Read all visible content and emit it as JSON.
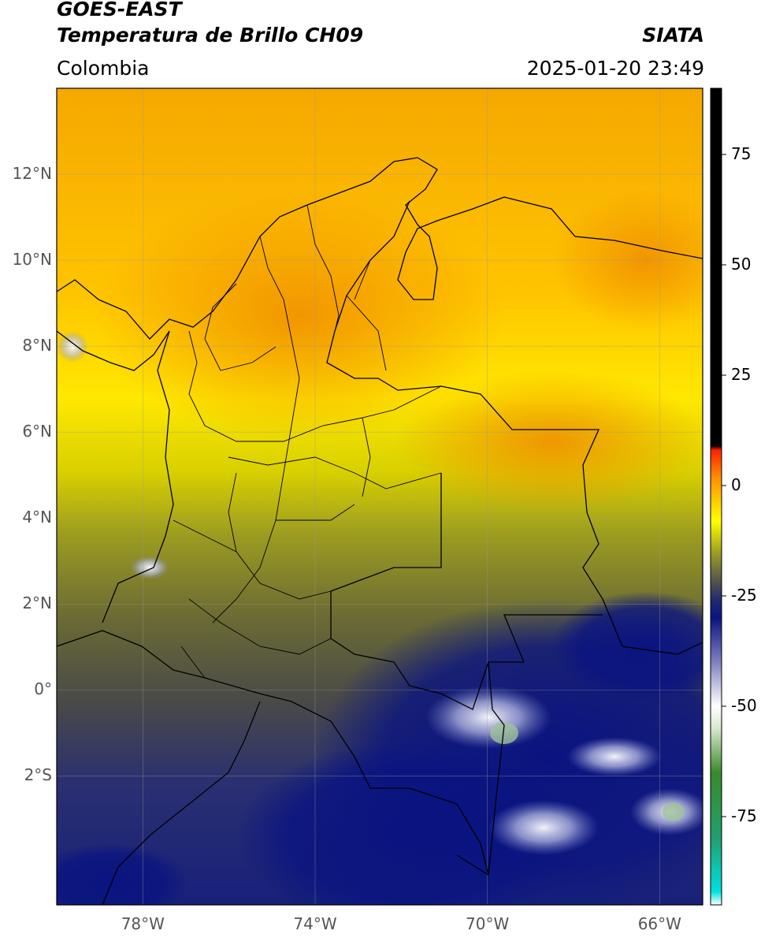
{
  "header": {
    "satellite": "GOES-EAST",
    "product": "Temperatura de Brillo CH09",
    "region": "Colombia",
    "source": "SIATA",
    "datetime": "2025-01-20 23:49"
  },
  "axes": {
    "lat_labels": [
      "12°N",
      "10°N",
      "8°N",
      "6°N",
      "4°N",
      "2°N",
      "0°",
      "2°S"
    ],
    "lat_values": [
      12,
      10,
      8,
      6,
      4,
      2,
      0,
      -2
    ],
    "lon_labels": [
      "78°W",
      "74°W",
      "70°W",
      "66°W"
    ],
    "lon_values": [
      -78,
      -74,
      -70,
      -66
    ],
    "lon_range": [
      -80,
      -65
    ],
    "lat_range": [
      -5,
      14
    ]
  },
  "colorbar": {
    "tick_labels": [
      "75",
      "50",
      "25",
      "0",
      "-25",
      "-50",
      "-75"
    ],
    "tick_values": [
      75,
      50,
      25,
      0,
      -25,
      -50,
      -75
    ],
    "range": [
      -95,
      90
    ],
    "stops": [
      {
        "v": -95,
        "c": "#ffffff"
      },
      {
        "v": -92,
        "c": "#00e0e0"
      },
      {
        "v": -80,
        "c": "#20a070"
      },
      {
        "v": -65,
        "c": "#3a8a2a"
      },
      {
        "v": -55,
        "c": "#d8e8d0"
      },
      {
        "v": -50,
        "c": "#ffffff"
      },
      {
        "v": -40,
        "c": "#8080c0"
      },
      {
        "v": -30,
        "c": "#0a1480"
      },
      {
        "v": -26,
        "c": "#1e2a70"
      },
      {
        "v": -22,
        "c": "#505050"
      },
      {
        "v": -15,
        "c": "#a0a020"
      },
      {
        "v": -8,
        "c": "#ffff00"
      },
      {
        "v": 2,
        "c": "#ff8c00"
      },
      {
        "v": 8,
        "c": "#ff2000"
      },
      {
        "v": 9,
        "c": "#000000"
      },
      {
        "v": 90,
        "c": "#000000"
      }
    ]
  }
}
